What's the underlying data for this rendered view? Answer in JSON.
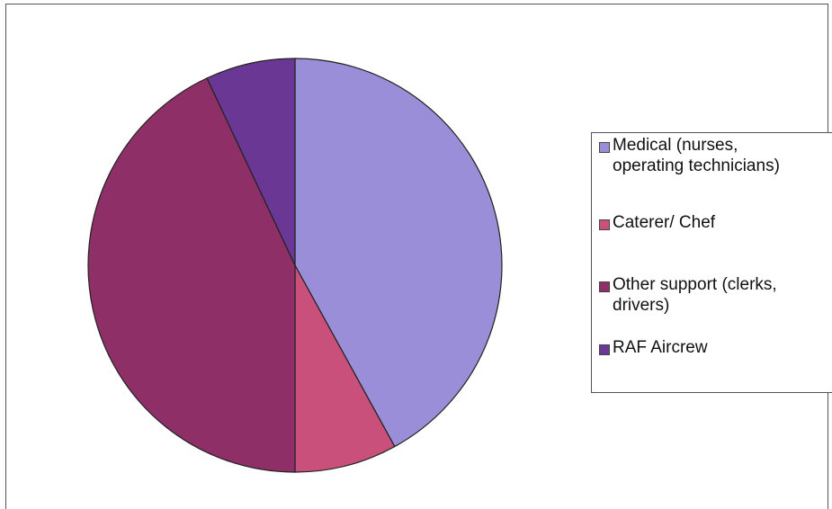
{
  "chart_data": {
    "type": "pie",
    "title": "",
    "slices": [
      {
        "label": "Medical (nurses,\noperating technicians)",
        "value": 42,
        "color": "#9a8ed8"
      },
      {
        "label": "Caterer/ Chef",
        "value": 8,
        "color": "#c8507a"
      },
      {
        "label": "Other support (clerks,\ndrivers)",
        "value": 43,
        "color": "#8e2f68"
      },
      {
        "label": "RAF Aircrew",
        "value": 7,
        "color": "#6a3894"
      }
    ],
    "start_angle_deg": 0,
    "direction": "clockwise",
    "legend_position": "right"
  },
  "legend": {
    "items": [
      {
        "label": "Medical (nurses,\noperating technicians)",
        "color": "#9a8ed8"
      },
      {
        "label": "Caterer/ Chef",
        "color": "#c8507a"
      },
      {
        "label": "Other support (clerks,\ndrivers)",
        "color": "#8e2f68"
      },
      {
        "label": "RAF Aircrew",
        "color": "#6a3894"
      }
    ]
  }
}
